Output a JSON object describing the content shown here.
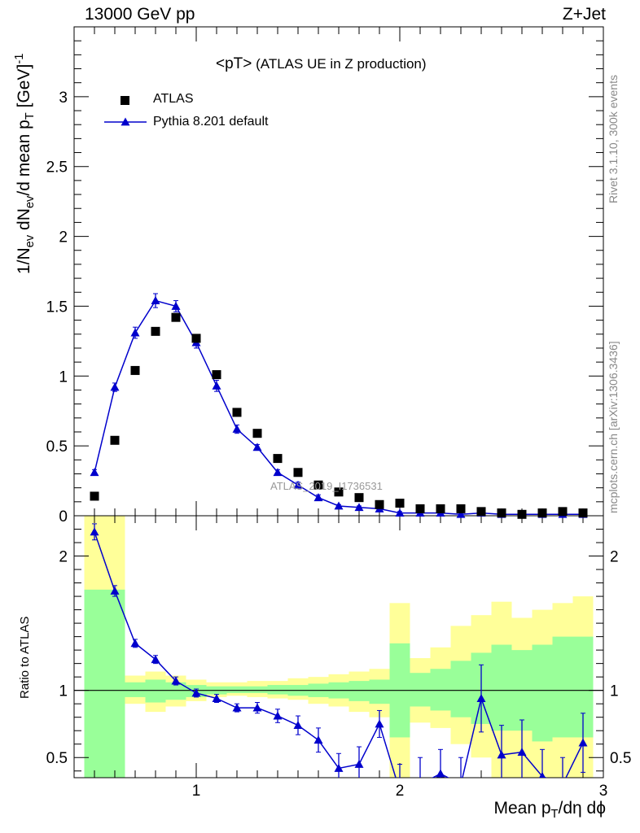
{
  "header": {
    "left": "13000 GeV pp",
    "right": "Z+Jet"
  },
  "title_prefix": "<pT>",
  "title_suffix": "(ATLAS UE in Z production)",
  "legend": {
    "data_label": "ATLAS",
    "mc_label": "Pythia 8.201 default"
  },
  "watermark": "ATLAS_2019_I1736531",
  "side_text": {
    "rivet": "Rivet 3.1.10,  300k events",
    "mcplots": "mcplots.cern.ch [arXiv:1306.3436]"
  },
  "ylabel_top": {
    "a": "1/N",
    "a_sub": "ev",
    "b": " dN",
    "b_sub": "ev",
    "c": "/d mean p",
    "c_sub": "T",
    "d": " [GeV]",
    "d_sup": "-1"
  },
  "ylabel_bottom": "Ratio to ATLAS",
  "xlabel": {
    "a": "Mean p",
    "a_sub": "T",
    "b": "/dη dϕ"
  },
  "colors": {
    "mc": "#0000cc",
    "band_inner": "#99ff99",
    "band_outer": "#ffff99",
    "data": "#000000"
  },
  "chart_data": [
    {
      "type": "scatter",
      "panel": "main",
      "xlim": [
        0.4,
        3.0
      ],
      "ylim": [
        0,
        3.5
      ],
      "yticks": [
        0,
        0.5,
        1,
        1.5,
        2,
        2.5,
        3
      ],
      "xticks": [
        1,
        2,
        3
      ],
      "series": [
        {
          "name": "ATLAS",
          "marker": "square",
          "x": [
            0.5,
            0.6,
            0.7,
            0.8,
            0.9,
            1.0,
            1.1,
            1.2,
            1.3,
            1.4,
            1.5,
            1.6,
            1.7,
            1.8,
            1.9,
            2.0,
            2.1,
            2.2,
            2.3,
            2.4,
            2.5,
            2.6,
            2.7,
            2.8,
            2.9
          ],
          "y": [
            0.14,
            0.54,
            1.04,
            1.32,
            1.42,
            1.27,
            1.01,
            0.74,
            0.59,
            0.41,
            0.31,
            0.22,
            0.17,
            0.13,
            0.08,
            0.09,
            0.05,
            0.05,
            0.05,
            0.03,
            0.02,
            0.01,
            0.02,
            0.03,
            0.02
          ]
        },
        {
          "name": "Pythia 8.201 default",
          "marker": "triangle",
          "x": [
            0.5,
            0.6,
            0.7,
            0.8,
            0.9,
            1.0,
            1.1,
            1.2,
            1.3,
            1.4,
            1.5,
            1.6,
            1.7,
            1.8,
            1.9,
            2.0,
            2.1,
            2.2,
            2.3,
            2.4,
            2.5,
            2.6,
            2.7,
            2.8,
            2.9
          ],
          "y": [
            0.31,
            0.92,
            1.31,
            1.54,
            1.5,
            1.24,
            0.93,
            0.62,
            0.49,
            0.31,
            0.22,
            0.13,
            0.07,
            0.06,
            0.05,
            0.02,
            0.02,
            0.02,
            0.01,
            0.02,
            0.01,
            0.01,
            0.01,
            0.01,
            0.01
          ],
          "err": [
            0.02,
            0.03,
            0.04,
            0.05,
            0.04,
            0.04,
            0.04,
            0.03,
            0.02,
            0.02,
            0.02,
            0.02,
            0.01,
            0.01,
            0.01,
            0.01,
            0.01,
            0.01,
            0.01,
            0.01,
            0.01,
            0.01,
            0.01,
            0.01,
            0.01
          ]
        }
      ]
    },
    {
      "type": "line",
      "panel": "ratio",
      "xlim": [
        0.4,
        3.0
      ],
      "ylim": [
        0.35,
        2.3
      ],
      "yticks": [
        0.5,
        1,
        2
      ],
      "xticks": [
        1,
        2,
        3
      ],
      "reference_line": 1,
      "bin_edges": [
        0.45,
        0.55,
        0.65,
        0.75,
        0.85,
        0.95,
        1.05,
        1.15,
        1.25,
        1.35,
        1.45,
        1.55,
        1.65,
        1.75,
        1.85,
        1.95,
        2.05,
        2.15,
        2.25,
        2.35,
        2.45,
        2.55,
        2.65,
        2.75,
        2.85,
        2.95
      ],
      "band_outer": {
        "lo": [
          0.35,
          0.35,
          0.9,
          0.84,
          0.88,
          0.92,
          0.95,
          0.96,
          0.95,
          0.94,
          0.93,
          0.9,
          0.88,
          0.84,
          0.8,
          0.35,
          0.76,
          0.72,
          0.6,
          0.5,
          0.35,
          0.35,
          0.35,
          0.35,
          0.35
        ],
        "hi": [
          2.3,
          2.3,
          1.11,
          1.14,
          1.11,
          1.08,
          1.06,
          1.06,
          1.07,
          1.07,
          1.09,
          1.1,
          1.12,
          1.14,
          1.16,
          1.65,
          1.24,
          1.32,
          1.48,
          1.56,
          1.66,
          1.54,
          1.6,
          1.65,
          1.7
        ]
      },
      "band_inner": {
        "lo": [
          0.35,
          0.35,
          0.95,
          0.91,
          0.93,
          0.95,
          0.97,
          0.98,
          0.98,
          0.97,
          0.96,
          0.95,
          0.94,
          0.92,
          0.9,
          0.65,
          0.88,
          0.85,
          0.8,
          0.75,
          0.7,
          0.7,
          0.62,
          0.65,
          0.65
        ],
        "hi": [
          1.75,
          1.75,
          1.06,
          1.08,
          1.06,
          1.04,
          1.03,
          1.03,
          1.03,
          1.04,
          1.04,
          1.05,
          1.06,
          1.07,
          1.08,
          1.35,
          1.13,
          1.16,
          1.22,
          1.28,
          1.34,
          1.3,
          1.34,
          1.4,
          1.4
        ]
      },
      "series": [
        {
          "name": "Pythia 8.201 default",
          "x": [
            0.5,
            0.6,
            0.7,
            0.8,
            0.9,
            1.0,
            1.1,
            1.2,
            1.3,
            1.4,
            1.5,
            1.6,
            1.7,
            1.8,
            1.9,
            2.0,
            2.1,
            2.2,
            2.3,
            2.4,
            2.5,
            2.6,
            2.7,
            2.8,
            2.9
          ],
          "y": [
            2.18,
            1.74,
            1.35,
            1.23,
            1.07,
            0.98,
            0.94,
            0.87,
            0.87,
            0.81,
            0.74,
            0.63,
            0.42,
            0.45,
            0.75,
            0.25,
            0.3,
            0.38,
            0.3,
            0.94,
            0.52,
            0.54,
            0.36,
            0.3,
            0.61
          ],
          "err": [
            0.06,
            0.04,
            0.03,
            0.03,
            0.03,
            0.03,
            0.03,
            0.03,
            0.04,
            0.05,
            0.07,
            0.09,
            0.11,
            0.13,
            0.1,
            0.2,
            0.2,
            0.18,
            0.2,
            0.25,
            0.22,
            0.24,
            0.2,
            0.2,
            0.22
          ]
        }
      ]
    }
  ]
}
